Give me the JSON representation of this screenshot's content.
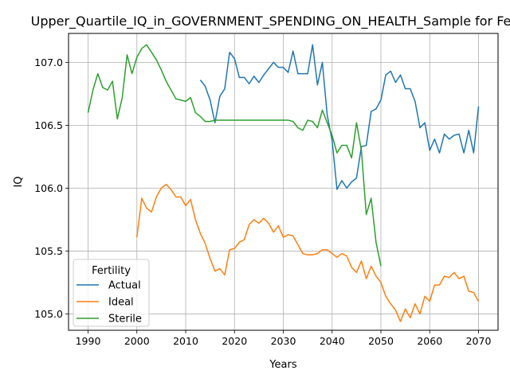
{
  "chart_data": {
    "type": "line",
    "title": "Upper_Quartile_IQ_in_GOVERNMENT_SPENDING_ON_HEALTH_Sample for Fe",
    "xlabel": "Years",
    "ylabel": "IQ",
    "xlim": [
      1986,
      2074
    ],
    "ylim": [
      104.87,
      107.23
    ],
    "x_ticks": [
      "1990",
      "2000",
      "2010",
      "2020",
      "2030",
      "2040",
      "2050",
      "2060",
      "2070"
    ],
    "y_ticks": [
      "105.0",
      "105.5",
      "106.0",
      "106.5",
      "107.0"
    ],
    "grid": true,
    "legend": {
      "title": "Fertility",
      "position": "lower-left"
    },
    "series": [
      {
        "name": "Actual",
        "color": "#1f77b4",
        "x": [
          2013,
          2014,
          2015,
          2016,
          2017,
          2018,
          2019,
          2020,
          2021,
          2022,
          2023,
          2024,
          2025,
          2026,
          2027,
          2028,
          2029,
          2030,
          2031,
          2032,
          2033,
          2034,
          2035,
          2036,
          2037,
          2038,
          2039,
          2040,
          2041,
          2042,
          2043,
          2044,
          2045,
          2046,
          2047,
          2048,
          2049,
          2050,
          2051,
          2052,
          2053,
          2054,
          2055,
          2056,
          2057,
          2058,
          2059,
          2060,
          2061,
          2062,
          2063,
          2064,
          2065,
          2066,
          2067,
          2068,
          2069,
          2070
        ],
        "values": [
          106.86,
          106.81,
          106.7,
          106.52,
          106.73,
          106.79,
          107.08,
          107.03,
          106.88,
          106.88,
          106.83,
          106.89,
          106.84,
          106.9,
          106.95,
          107.0,
          106.96,
          106.96,
          106.92,
          107.09,
          106.91,
          106.91,
          106.91,
          107.14,
          106.82,
          107.0,
          106.58,
          106.38,
          105.99,
          106.06,
          106.0,
          106.05,
          106.08,
          106.33,
          106.34,
          106.61,
          106.63,
          106.7,
          106.9,
          106.93,
          106.84,
          106.9,
          106.79,
          106.79,
          106.69,
          106.48,
          106.52,
          106.3,
          106.39,
          106.28,
          106.43,
          106.39,
          106.42,
          106.43,
          106.28,
          106.46,
          106.28,
          106.65
        ]
      },
      {
        "name": "Ideal",
        "color": "#ff7f0e",
        "x": [
          2000,
          2001,
          2002,
          2003,
          2004,
          2005,
          2006,
          2007,
          2008,
          2009,
          2010,
          2011,
          2012,
          2013,
          2014,
          2015,
          2016,
          2017,
          2018,
          2019,
          2020,
          2021,
          2022,
          2023,
          2024,
          2025,
          2026,
          2027,
          2028,
          2029,
          2030,
          2031,
          2032,
          2033,
          2034,
          2035,
          2036,
          2037,
          2038,
          2039,
          2040,
          2041,
          2042,
          2043,
          2044,
          2045,
          2046,
          2047,
          2048,
          2049,
          2050,
          2051,
          2052,
          2053,
          2054,
          2055,
          2056,
          2057,
          2058,
          2059,
          2060,
          2061,
          2062,
          2063,
          2064,
          2065,
          2066,
          2067,
          2068,
          2069,
          2070
        ],
        "values": [
          105.61,
          105.92,
          105.84,
          105.81,
          105.93,
          106.0,
          106.03,
          105.99,
          105.93,
          105.93,
          105.86,
          105.91,
          105.75,
          105.64,
          105.56,
          105.44,
          105.34,
          105.36,
          105.31,
          105.51,
          105.52,
          105.57,
          105.59,
          105.71,
          105.75,
          105.72,
          105.76,
          105.72,
          105.65,
          105.7,
          105.61,
          105.63,
          105.62,
          105.55,
          105.48,
          105.47,
          105.47,
          105.48,
          105.51,
          105.51,
          105.48,
          105.45,
          105.48,
          105.46,
          105.37,
          105.33,
          105.42,
          105.28,
          105.38,
          105.3,
          105.25,
          105.14,
          105.08,
          105.03,
          104.94,
          105.04,
          104.97,
          105.08,
          105.0,
          105.14,
          105.1,
          105.23,
          105.23,
          105.3,
          105.29,
          105.33,
          105.28,
          105.3,
          105.18,
          105.17,
          105.1
        ]
      },
      {
        "name": "Sterile",
        "color": "#2ca02c",
        "x": [
          1990,
          1991,
          1992,
          1993,
          1994,
          1995,
          1996,
          1997,
          1998,
          1999,
          2000,
          2001,
          2002,
          2003,
          2004,
          2005,
          2006,
          2007,
          2008,
          2009,
          2010,
          2011,
          2012,
          2013,
          2014,
          2015,
          2016,
          2017,
          2018,
          2019,
          2020,
          2021,
          2022,
          2023,
          2024,
          2025,
          2026,
          2027,
          2028,
          2029,
          2030,
          2031,
          2032,
          2033,
          2034,
          2035,
          2036,
          2037,
          2038,
          2039,
          2040,
          2041,
          2042,
          2043,
          2044,
          2045,
          2046,
          2047,
          2048,
          2049,
          2050
        ],
        "values": [
          106.6,
          106.78,
          106.91,
          106.8,
          106.78,
          106.85,
          106.55,
          106.72,
          107.06,
          106.91,
          107.04,
          107.11,
          107.14,
          107.08,
          107.02,
          106.94,
          106.85,
          106.78,
          106.71,
          106.7,
          106.69,
          106.72,
          106.6,
          106.57,
          106.53,
          106.53,
          106.54,
          106.54,
          106.54,
          106.54,
          106.54,
          106.54,
          106.54,
          106.54,
          106.54,
          106.54,
          106.54,
          106.54,
          106.54,
          106.54,
          106.54,
          106.54,
          106.53,
          106.48,
          106.46,
          106.54,
          106.53,
          106.48,
          106.62,
          106.52,
          106.42,
          106.28,
          106.34,
          106.34,
          106.24,
          106.52,
          106.3,
          105.79,
          105.92,
          105.57,
          105.38
        ]
      }
    ]
  }
}
